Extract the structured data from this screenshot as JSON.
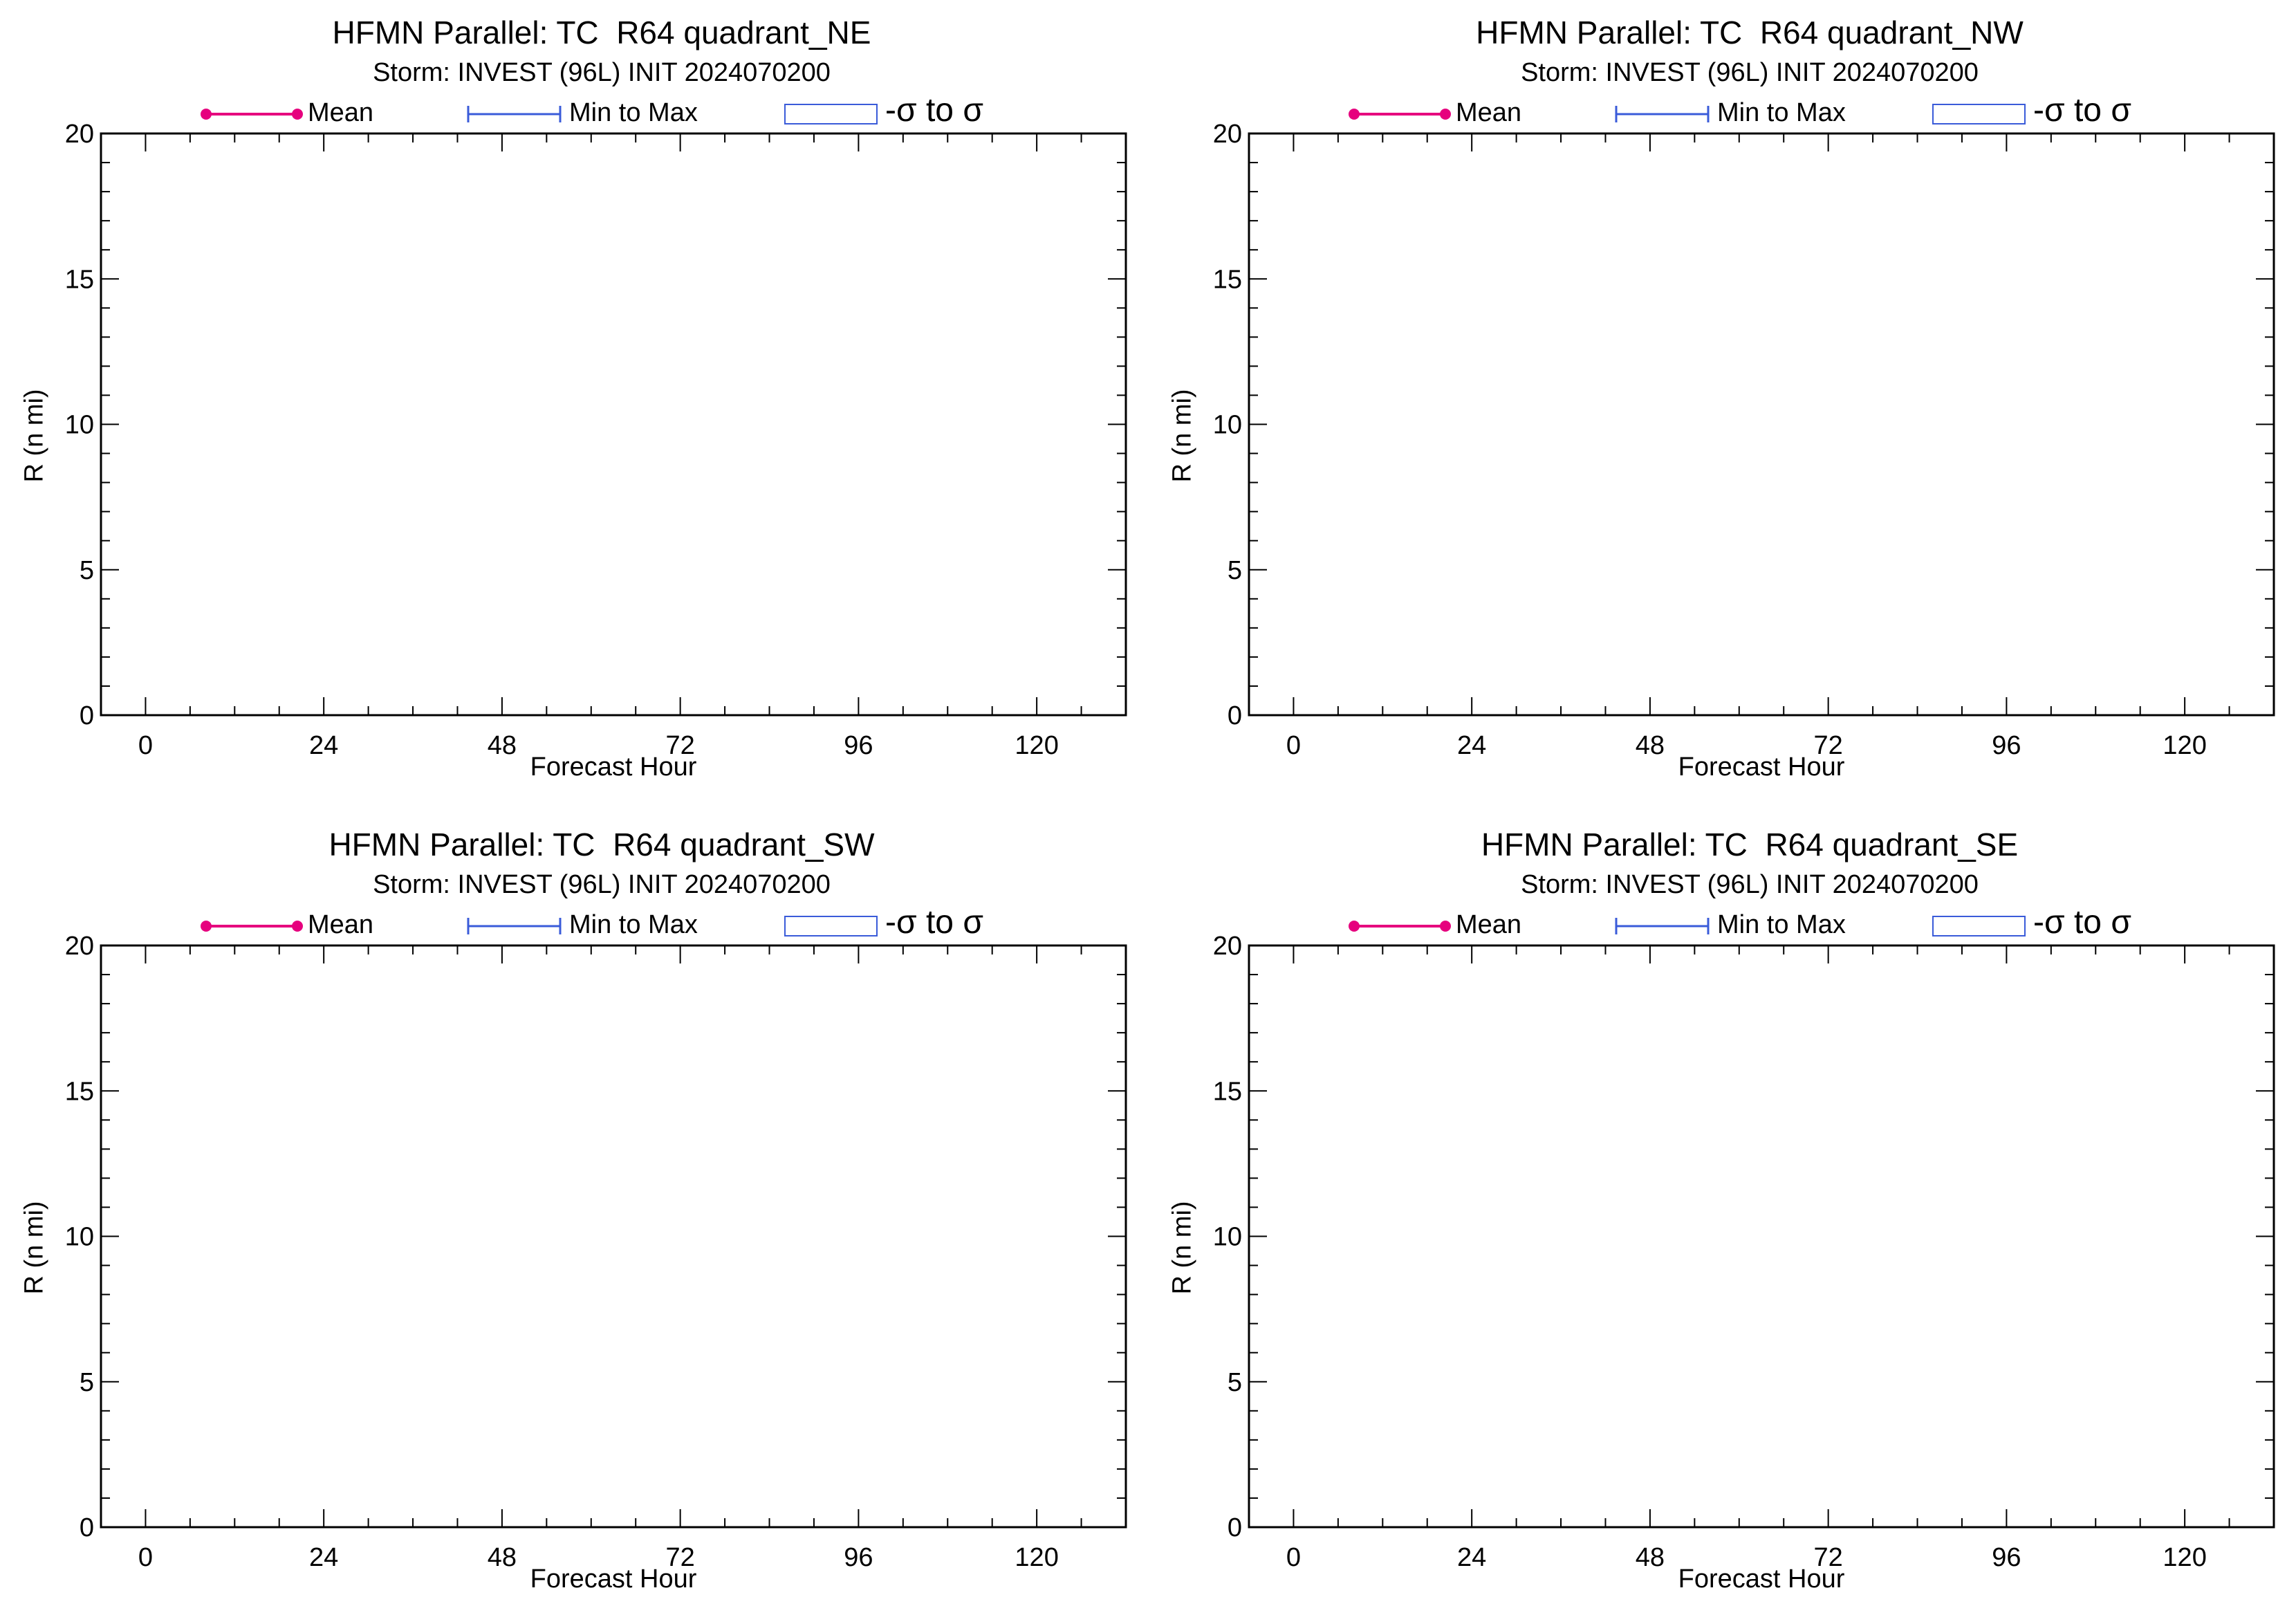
{
  "colors": {
    "mean": "#e6007e",
    "minmax": "#3a5bd9",
    "axis": "#000000",
    "background": "#ffffff"
  },
  "legend": {
    "mean_label": "Mean",
    "minmax_label": "Min to Max",
    "sigma_label": "-σ to σ"
  },
  "chart_data": [
    {
      "type": "line",
      "title": "HFMN Parallel: TC  R64 quadrant_NE",
      "subtitle": "Storm: INVEST (96L) INIT 2024070200",
      "xlabel": "Forecast Hour",
      "ylabel": "R (n mi)",
      "xlim": [
        -6,
        132
      ],
      "ylim": [
        0,
        20
      ],
      "x_ticks": [
        0,
        24,
        48,
        72,
        96,
        120
      ],
      "y_ticks": [
        0,
        5,
        10,
        15,
        20
      ],
      "series": [
        {
          "name": "Mean",
          "x": [],
          "values": []
        },
        {
          "name": "Min to Max",
          "x": [],
          "values": []
        },
        {
          "name": "-σ to σ",
          "x": [],
          "values": []
        }
      ]
    },
    {
      "type": "line",
      "title": "HFMN Parallel: TC  R64 quadrant_NW",
      "subtitle": "Storm: INVEST (96L) INIT 2024070200",
      "xlabel": "Forecast Hour",
      "ylabel": "R (n mi)",
      "xlim": [
        -6,
        132
      ],
      "ylim": [
        0,
        20
      ],
      "x_ticks": [
        0,
        24,
        48,
        72,
        96,
        120
      ],
      "y_ticks": [
        0,
        5,
        10,
        15,
        20
      ],
      "series": [
        {
          "name": "Mean",
          "x": [],
          "values": []
        },
        {
          "name": "Min to Max",
          "x": [],
          "values": []
        },
        {
          "name": "-σ to σ",
          "x": [],
          "values": []
        }
      ]
    },
    {
      "type": "line",
      "title": "HFMN Parallel: TC  R64 quadrant_SW",
      "subtitle": "Storm: INVEST (96L) INIT 2024070200",
      "xlabel": "Forecast Hour",
      "ylabel": "R (n mi)",
      "xlim": [
        -6,
        132
      ],
      "ylim": [
        0,
        20
      ],
      "x_ticks": [
        0,
        24,
        48,
        72,
        96,
        120
      ],
      "y_ticks": [
        0,
        5,
        10,
        15,
        20
      ],
      "series": [
        {
          "name": "Mean",
          "x": [],
          "values": []
        },
        {
          "name": "Min to Max",
          "x": [],
          "values": []
        },
        {
          "name": "-σ to σ",
          "x": [],
          "values": []
        }
      ]
    },
    {
      "type": "line",
      "title": "HFMN Parallel: TC  R64 quadrant_SE",
      "subtitle": "Storm: INVEST (96L) INIT 2024070200",
      "xlabel": "Forecast Hour",
      "ylabel": "R (n mi)",
      "xlim": [
        -6,
        132
      ],
      "ylim": [
        0,
        20
      ],
      "x_ticks": [
        0,
        24,
        48,
        72,
        96,
        120
      ],
      "y_ticks": [
        0,
        5,
        10,
        15,
        20
      ],
      "series": [
        {
          "name": "Mean",
          "x": [],
          "values": []
        },
        {
          "name": "Min to Max",
          "x": [],
          "values": []
        },
        {
          "name": "-σ to σ",
          "x": [],
          "values": []
        }
      ]
    }
  ]
}
